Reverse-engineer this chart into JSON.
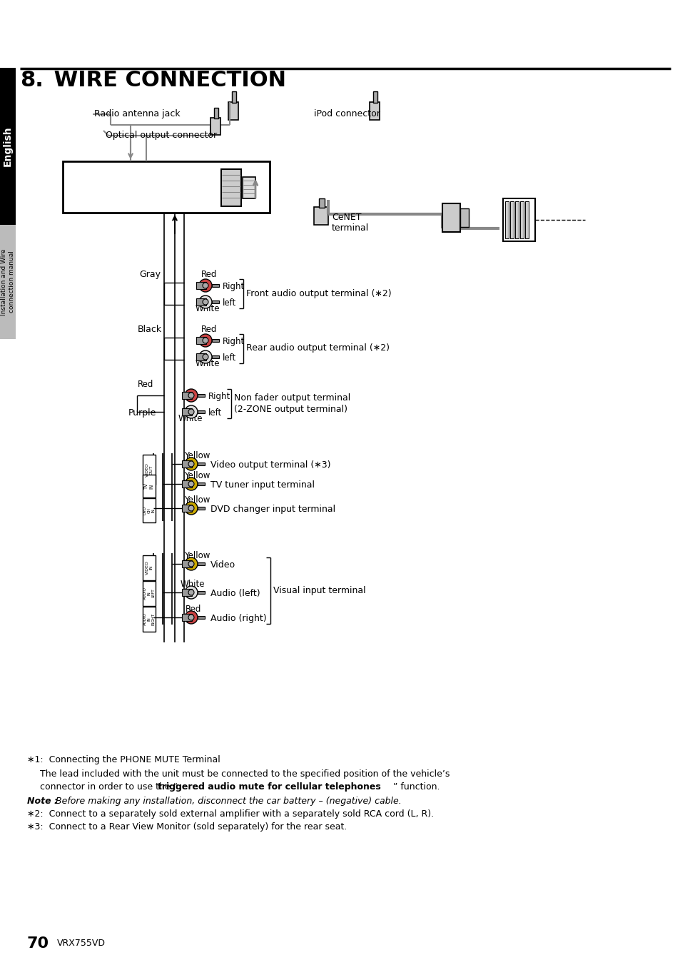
{
  "title_num": "8.",
  "title_text": " WIRE CONNECTION",
  "page_number": "70",
  "model": "VRX755VD",
  "sidebar_english": "English",
  "sidebar_install": "Installation and Wire\nconnection manual",
  "labels": {
    "radio_antenna": "Radio antenna jack",
    "optical_output": "Optical output connector",
    "ipod_connector": "iPod connector",
    "cenet_terminal": "CeNET\nterminal",
    "gray": "Gray",
    "black": "Black",
    "purple": "Purple",
    "red": "Red",
    "white": "White",
    "yellow": "Yellow",
    "right": "Right",
    "left": "left",
    "front_audio": "Front audio output terminal (∗2)",
    "rear_audio": "Rear audio output terminal (∗2)",
    "non_fader_1": "Non fader output terminal",
    "non_fader_2": "(2-ZONE output terminal)",
    "video_output": "Video output terminal (∗3)",
    "tv_tuner": "TV tuner input terminal",
    "dvd_changer": "DVD changer input terminal",
    "video": "Video",
    "audio_left": "Audio (left)",
    "audio_right": "Audio (right)",
    "visual_input": "Visual input terminal"
  },
  "fn1_title": "∗1:  Connecting the PHONE MUTE Terminal",
  "fn1_line1": "The lead included with the unit must be connected to the specified position of the vehicle’s",
  "fn1_line2a": "connector in order to use the “",
  "fn1_line2b": "triggered audio mute for cellular telephones",
  "fn1_line2c": "” function.",
  "fn_note_label": "Note :",
  "fn_note_text": "Before making any installation, disconnect the car battery – (negative) cable.",
  "fn2": "∗2:  Connect to a separately sold external amplifier with a separately sold RCA cord (L, R).",
  "fn3": "∗3:  Connect to a Rear View Monitor (sold separately) for the rear seat.",
  "bg_color": "#ffffff",
  "gray_line": "#888888",
  "light_gray": "#cccccc",
  "mid_gray": "#999999",
  "dark_gray": "#555555"
}
